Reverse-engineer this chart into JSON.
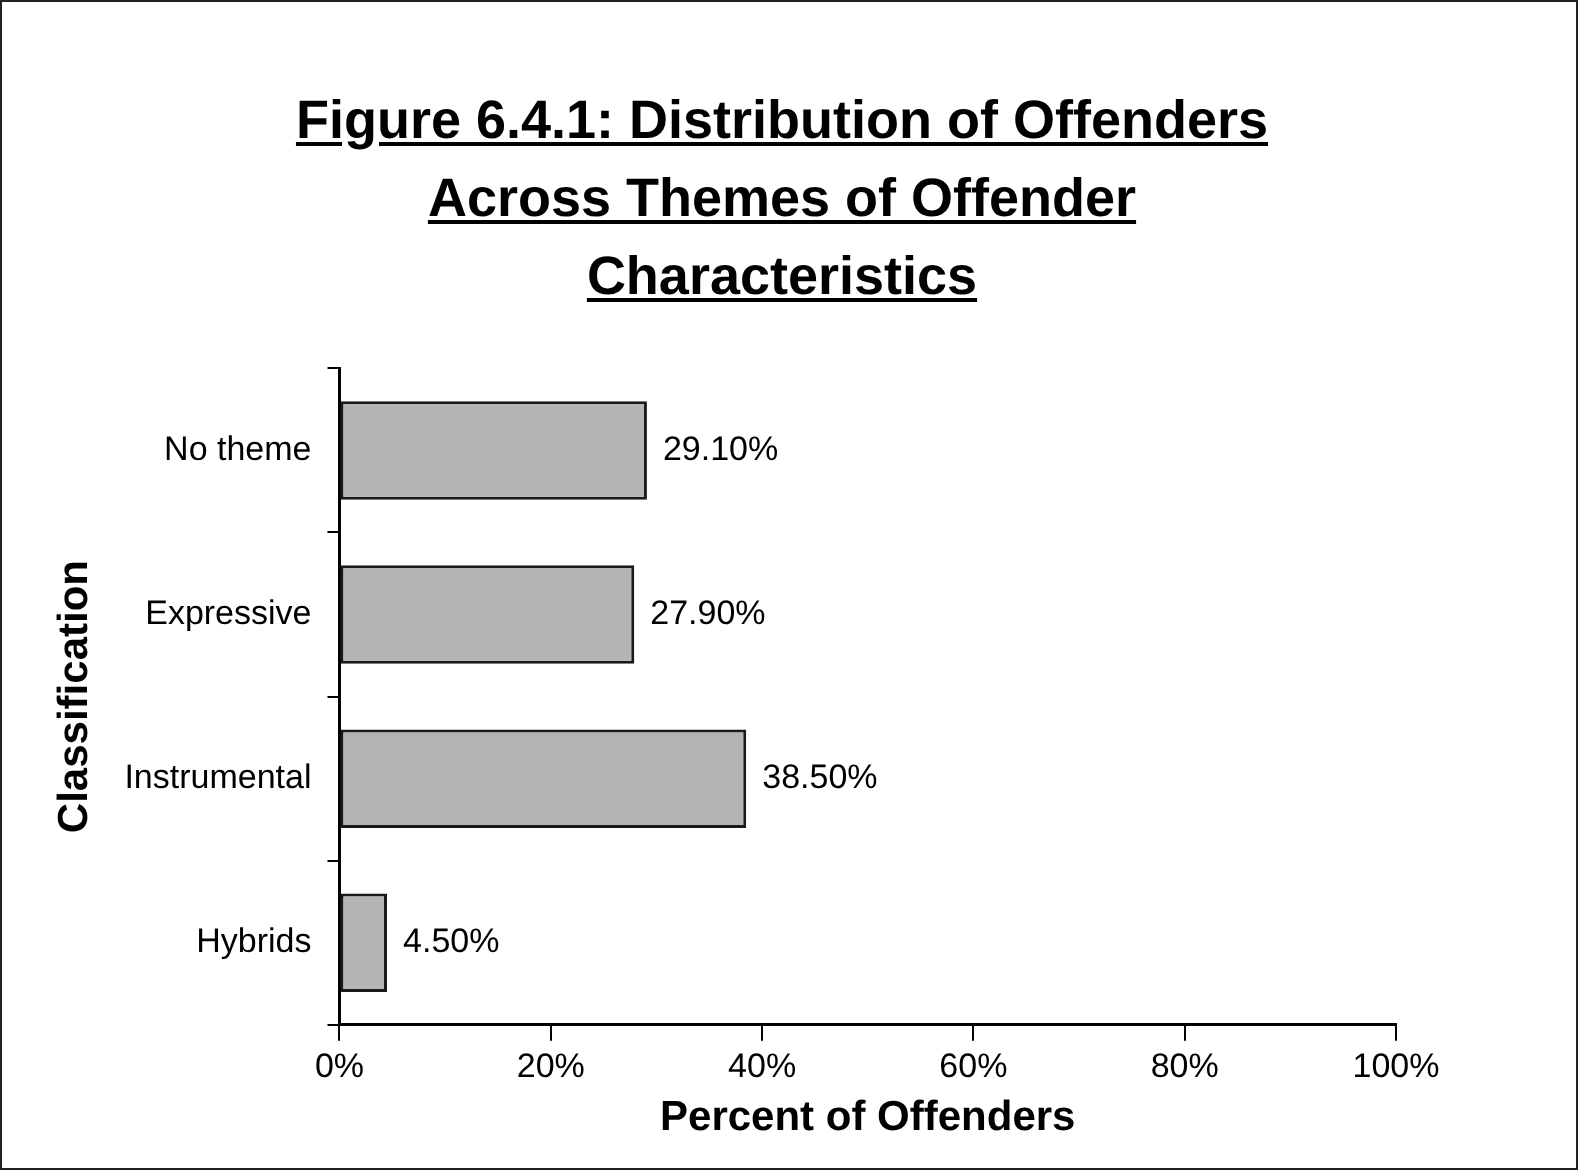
{
  "chart_data": {
    "type": "bar",
    "orientation": "horizontal",
    "title": "Figure 6.4.1: Distribution of Offenders Across Themes of Offender Characteristics",
    "xlabel": "Percent of Offenders",
    "ylabel": "Classification",
    "categories": [
      "No theme",
      "Expressive",
      "Instrumental",
      "Hybrids"
    ],
    "values": [
      29.1,
      27.9,
      38.5,
      4.5
    ],
    "value_labels": [
      "29.10%",
      "27.90%",
      "38.50%",
      "4.50%"
    ],
    "color": "#b4b4b4",
    "xlim": [
      0,
      100
    ],
    "xticks": [
      {
        "value": 0,
        "label": "0%"
      },
      {
        "value": 20,
        "label": "20%"
      },
      {
        "value": 40,
        "label": "40%"
      },
      {
        "value": 60,
        "label": "60%"
      },
      {
        "value": 80,
        "label": "80%"
      },
      {
        "value": 100,
        "label": "100%"
      }
    ],
    "grid": false,
    "legend": false
  }
}
